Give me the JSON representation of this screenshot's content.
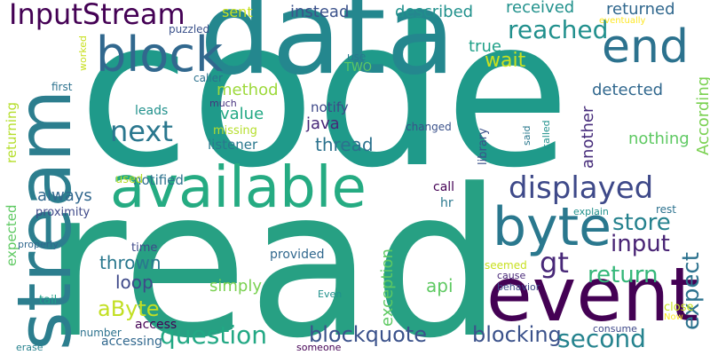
{
  "words": [
    {
      "text": "code",
      "color": "#1f9a8a"
    },
    {
      "text": "read",
      "color": "#27a083"
    },
    {
      "text": "data",
      "color": "#24878e"
    },
    {
      "text": "stream",
      "color": "#2c7e8e"
    },
    {
      "text": "available",
      "color": "#25ab82"
    },
    {
      "text": "event",
      "color": "#440154"
    },
    {
      "text": "byte",
      "color": "#2a788e"
    },
    {
      "text": "block",
      "color": "#31688e"
    },
    {
      "text": "end",
      "color": "#2c728e"
    },
    {
      "text": "InputStream",
      "color": "#440154"
    },
    {
      "text": "displayed",
      "color": "#3e4989"
    },
    {
      "text": "question",
      "color": "#22a884"
    },
    {
      "text": "blockquote",
      "color": "#3b528b"
    },
    {
      "text": "blocking",
      "color": "#3b528b"
    },
    {
      "text": "second",
      "color": "#25838e"
    },
    {
      "text": "reached",
      "color": "#21908d"
    },
    {
      "text": "next",
      "color": "#2a778e"
    },
    {
      "text": "store",
      "color": "#26828e"
    },
    {
      "text": "input",
      "color": "#482374"
    },
    {
      "text": "return",
      "color": "#35b779"
    },
    {
      "text": "gt",
      "color": "#482878"
    },
    {
      "text": "expect",
      "color": "#2c728e"
    },
    {
      "text": "wait",
      "color": "#c8e020"
    },
    {
      "text": "aByte",
      "color": "#c2df23"
    },
    {
      "text": "thrown",
      "color": "#2a788e"
    },
    {
      "text": "loop",
      "color": "#3e4989"
    },
    {
      "text": "api",
      "color": "#5ec962"
    },
    {
      "text": "simply",
      "color": "#7ad151"
    },
    {
      "text": "method",
      "color": "#9dd93b"
    },
    {
      "text": "value",
      "color": "#22a884"
    },
    {
      "text": "java",
      "color": "#482878"
    },
    {
      "text": "thread",
      "color": "#2c728e"
    },
    {
      "text": "nothing",
      "color": "#5ec962"
    },
    {
      "text": "received",
      "color": "#21918c"
    },
    {
      "text": "returned",
      "color": "#31688e"
    },
    {
      "text": "described",
      "color": "#21918c"
    },
    {
      "text": "instead",
      "color": "#3b528b"
    },
    {
      "text": "sent",
      "color": "#c8e020"
    },
    {
      "text": "true",
      "color": "#1fa088"
    },
    {
      "text": "detected",
      "color": "#31688e"
    },
    {
      "text": "According",
      "color": "#7ad151"
    },
    {
      "text": "another",
      "color": "#472d7b"
    },
    {
      "text": "always",
      "color": "#31688e"
    },
    {
      "text": "notified",
      "color": "#2c728e"
    },
    {
      "text": "listener",
      "color": "#2a788e"
    },
    {
      "text": "notify",
      "color": "#3e4989"
    },
    {
      "text": "leads",
      "color": "#21918c"
    },
    {
      "text": "missing",
      "color": "#b5de2b"
    },
    {
      "text": "much",
      "color": "#46327e"
    },
    {
      "text": "caller",
      "color": "#2c728e"
    },
    {
      "text": "first",
      "color": "#2c728e"
    },
    {
      "text": "puzzled",
      "color": "#3b528b"
    },
    {
      "text": "use",
      "color": "#2a788e"
    },
    {
      "text": "TWO",
      "color": "#5ec962"
    },
    {
      "text": "worked",
      "color": "#c8e020"
    },
    {
      "text": "eventually",
      "color": "#fde725"
    },
    {
      "text": "expected",
      "color": "#5ec962"
    },
    {
      "text": "returning",
      "color": "#b5de2b"
    },
    {
      "text": "proximity",
      "color": "#3e4989"
    },
    {
      "text": "properly",
      "color": "#31688e"
    },
    {
      "text": "tail",
      "color": "#1fa088"
    },
    {
      "text": "accessing",
      "color": "#31688e"
    },
    {
      "text": "access",
      "color": "#440154"
    },
    {
      "text": "number",
      "color": "#2c728e"
    },
    {
      "text": "erase",
      "color": "#26828e"
    },
    {
      "text": "someone",
      "color": "#440154"
    },
    {
      "text": "used",
      "color": "#b5de2b"
    },
    {
      "text": "call",
      "color": "#440154"
    },
    {
      "text": "hr",
      "color": "#2a788e"
    },
    {
      "text": "exception",
      "color": "#5ec962"
    },
    {
      "text": "library",
      "color": "#3b528b"
    },
    {
      "text": "changed",
      "color": "#3b528b"
    },
    {
      "text": "said",
      "color": "#2a788e"
    },
    {
      "text": "called",
      "color": "#21918c"
    },
    {
      "text": "explain",
      "color": "#21918c"
    },
    {
      "text": "rest",
      "color": "#2c728e"
    },
    {
      "text": "time",
      "color": "#3e4989"
    },
    {
      "text": "provided",
      "color": "#31688e"
    },
    {
      "text": "seemed",
      "color": "#c8e020"
    },
    {
      "text": "cause",
      "color": "#482878"
    },
    {
      "text": "behavior",
      "color": "#3e4989"
    },
    {
      "text": "Even",
      "color": "#21918c"
    },
    {
      "text": "close",
      "color": "#c8e020"
    },
    {
      "text": "Now",
      "color": "#fde725"
    },
    {
      "text": "consume",
      "color": "#3e4989"
    }
  ]
}
